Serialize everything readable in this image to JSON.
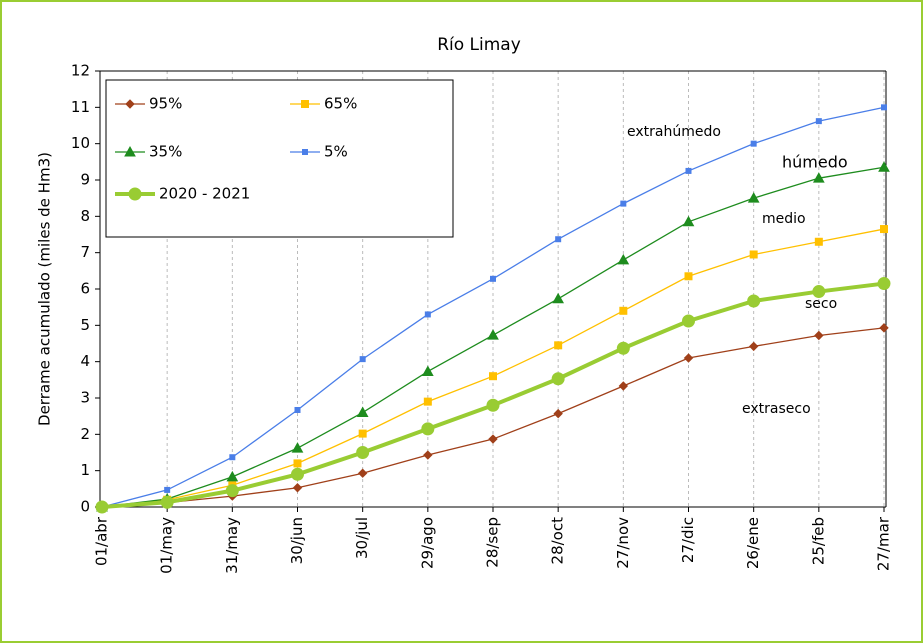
{
  "chart_data": {
    "type": "line",
    "title": "Río Limay",
    "ylabel": "Derrame acumulado (miles de Hm3)",
    "categories": [
      "01/abr",
      "01/may",
      "31/may",
      "30/jun",
      "30/jul",
      "29/ago",
      "28/sep",
      "28/oct",
      "27/nov",
      "27/dic",
      "26/ene",
      "25/feb",
      "27/mar"
    ],
    "series": [
      {
        "name": "95%",
        "color": "#a0401a",
        "marker": "diamond",
        "values": [
          0,
          0.12,
          0.3,
          0.53,
          0.93,
          1.43,
          1.87,
          2.57,
          3.33,
          4.1,
          4.42,
          4.72,
          4.93
        ]
      },
      {
        "name": "65%",
        "color": "#ffc000",
        "marker": "square",
        "values": [
          0,
          0.2,
          0.6,
          1.2,
          2.02,
          2.9,
          3.6,
          4.45,
          5.4,
          6.35,
          6.95,
          7.3,
          7.65
        ]
      },
      {
        "name": "35%",
        "color": "#1e8c1e",
        "marker": "triangle",
        "values": [
          0,
          0.22,
          0.83,
          1.62,
          2.6,
          3.73,
          4.73,
          5.73,
          6.8,
          7.85,
          8.5,
          9.05,
          9.35
        ]
      },
      {
        "name": "5%",
        "color": "#4a7ee8",
        "marker": "smallsquare",
        "values": [
          0,
          0.47,
          1.37,
          2.67,
          4.07,
          5.3,
          6.28,
          7.37,
          8.35,
          9.25,
          10.0,
          10.62,
          11.0
        ]
      },
      {
        "name": "2020 - 2021",
        "color": "#99cc33",
        "marker": "circle",
        "values": [
          0,
          0.13,
          0.45,
          0.9,
          1.5,
          2.15,
          2.8,
          3.53,
          4.37,
          5.12,
          5.67,
          5.93,
          6.15
        ]
      }
    ],
    "annotations": [
      "extrahúmedo",
      "húmedo",
      "medio",
      "seco",
      "extraseco"
    ],
    "ylim": [
      0,
      12
    ],
    "yticks": [
      0,
      1,
      2,
      3,
      4,
      5,
      6,
      7,
      8,
      9,
      10,
      11,
      12
    ],
    "grid": "x",
    "legend": "upper left"
  }
}
